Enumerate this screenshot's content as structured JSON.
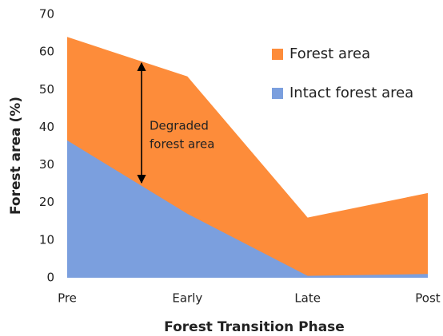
{
  "chart_data": {
    "type": "area",
    "xlabel": "Forest Transition Phase",
    "ylabel": "Forest area (%)",
    "categories": [
      "Pre",
      "Early",
      "Late",
      "Post"
    ],
    "series": [
      {
        "name": "Forest area",
        "color": "#fd8c3a",
        "values": [
          64,
          53.5,
          16,
          22.5
        ]
      },
      {
        "name": "Intact forest area",
        "color": "#7b9fde",
        "values": [
          36.5,
          17,
          0.5,
          1
        ]
      }
    ],
    "annotation": [
      "Degraded",
      "forest area"
    ],
    "ylim": [
      0,
      70
    ],
    "yticks": [
      0,
      10,
      20,
      30,
      40,
      50,
      60,
      70
    ],
    "grid": false,
    "legend": "upper right"
  }
}
